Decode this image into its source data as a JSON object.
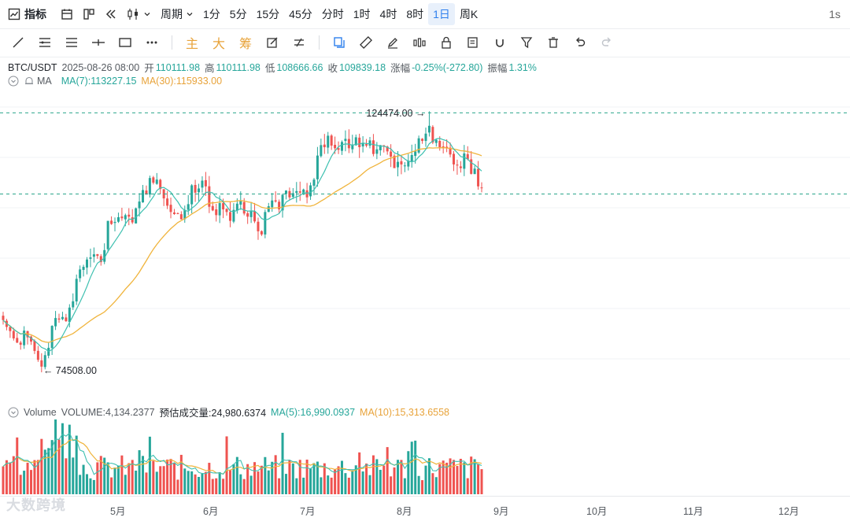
{
  "toolbar": {
    "indicator_label": "指标",
    "period_label": "周期",
    "periods": [
      "1分",
      "5分",
      "15分",
      "45分",
      "分时",
      "1时",
      "4时",
      "8时",
      "1日",
      "周K"
    ],
    "active_period": "1日",
    "refresh_label": "1s",
    "drawing_text_tools": [
      "主",
      "大",
      "筹"
    ]
  },
  "legend": {
    "symbol": "BTC/USDT",
    "datetime": "2025-08-26 08:00",
    "open_label": "开",
    "open": "110111.98",
    "high_label": "高",
    "high": "110111.98",
    "low_label": "低",
    "low": "108666.66",
    "close_label": "收",
    "close": "109839.18",
    "change_label": "涨幅",
    "change": "-0.25%(-272.80)",
    "amplitude_label": "振幅",
    "amplitude": "1.31%"
  },
  "ma_legend": {
    "name": "MA",
    "ma7": "MA(7):113227.15",
    "ma30": "MA(30):115933.00"
  },
  "volume_legend": {
    "name": "Volume",
    "volume": "VOLUME:4,134.2377",
    "estimated": "预估成交量:24,980.6374",
    "ma5": "MA(5):16,990.0937",
    "ma10": "MA(10):15,313.6558"
  },
  "price_marks": {
    "high": "124474.00",
    "low": "74508.00"
  },
  "x_axis": [
    "5月",
    "6月",
    "7月",
    "8月",
    "9月",
    "10月",
    "11月",
    "12月"
  ],
  "watermark": "大数跨境",
  "colors": {
    "up": "#26a69a",
    "down": "#ef5350",
    "ma7": "#26a69a",
    "ma30": "#f0b43c",
    "accent": "#2f80ed"
  },
  "chart_data": {
    "type": "candlestick",
    "symbol": "BTC/USDT",
    "interval": "1日",
    "high_marker": 124474.0,
    "low_marker": 74508.0,
    "last_close": 109839.18,
    "approx_closes": [
      84500,
      83200,
      82400,
      81000,
      80200,
      79800,
      82500,
      81200,
      80400,
      78600,
      76900,
      75600,
      77800,
      79200,
      83400,
      84900,
      84600,
      85100,
      84300,
      86900,
      88100,
      92400,
      94200,
      94700,
      96100,
      96500,
      97100,
      96800,
      95600,
      97900,
      103500,
      102900,
      103300,
      104200,
      104000,
      104600,
      104300,
      103200,
      105900,
      107200,
      109400,
      108600,
      111700,
      110800,
      111400,
      109600,
      107800,
      106400,
      105200,
      104800,
      104900,
      103800,
      105600,
      106700,
      110300,
      108900,
      109700,
      111200,
      110100,
      106200,
      105500,
      104600,
      106900,
      105700,
      105200,
      103500,
      105600,
      106800,
      107300,
      104900,
      104300,
      105400,
      103400,
      101500,
      100900,
      105200,
      106300,
      107400,
      107200,
      105700,
      108500,
      109300,
      108000,
      108800,
      109200,
      108900,
      109500,
      108000,
      110300,
      111400,
      116000,
      118000,
      117600,
      119800,
      117900,
      117400,
      117100,
      118600,
      119200,
      117400,
      118100,
      119500,
      117600,
      118400,
      117900,
      118900,
      116300,
      117200,
      118000,
      117900,
      116800,
      115800,
      113600,
      114800,
      114300,
      114100,
      115000,
      116100,
      116800,
      119300,
      118800,
      120200,
      121700,
      118500,
      119000,
      117600,
      117500,
      117400,
      116200,
      114300,
      114100,
      113600,
      116400,
      115300,
      112500,
      113500,
      110100,
      109839
    ],
    "volume_ma_series": [
      "MA(5)",
      "MA(10)"
    ]
  }
}
